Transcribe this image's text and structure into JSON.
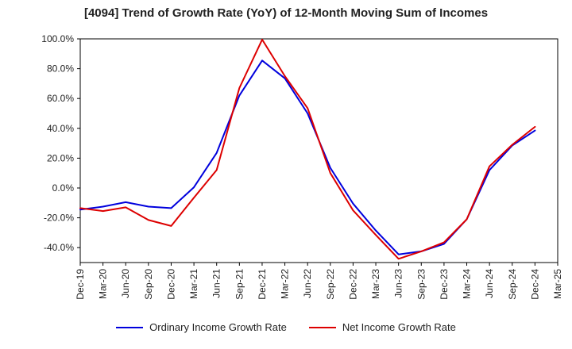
{
  "chart_data": {
    "type": "line",
    "title": "[4094]  Trend of Growth Rate (YoY) of 12-Month Moving Sum of Incomes",
    "xlabel": "",
    "ylabel": "",
    "ylim": [
      -50,
      100
    ],
    "y_ticks": [
      "100.0%",
      "80.0%",
      "60.0%",
      "40.0%",
      "20.0%",
      "0.0%",
      "-20.0%",
      "-40.0%"
    ],
    "y_tick_values": [
      100,
      80,
      60,
      40,
      20,
      0,
      -20,
      -40
    ],
    "x_ticks": [
      "Dec-19",
      "Mar-20",
      "Jun-20",
      "Sep-20",
      "Dec-20",
      "Mar-21",
      "Jun-21",
      "Sep-21",
      "Dec-21",
      "Mar-22",
      "Jun-22",
      "Sep-22",
      "Dec-22",
      "Mar-23",
      "Jun-23",
      "Sep-23",
      "Dec-23",
      "Mar-24",
      "Jun-24",
      "Sep-24",
      "Dec-24",
      "Mar-25"
    ],
    "grid": true,
    "legend_position": "bottom",
    "series": [
      {
        "name": "Ordinary Income Growth Rate",
        "color": "#0000dd",
        "values": [
          -14.5,
          -12.5,
          -9.5,
          -12.5,
          -13.5,
          0.5,
          23.5,
          62.0,
          85.5,
          73.5,
          50.0,
          13.5,
          -10.5,
          -28.5,
          -44.5,
          -42.5,
          -37.5,
          -21.0,
          12.0,
          28.5,
          38.5
        ]
      },
      {
        "name": "Net Income Growth Rate",
        "color": "#dd0000",
        "values": [
          -13.5,
          -15.5,
          -13.0,
          -21.5,
          -25.5,
          -6.5,
          12.0,
          67.0,
          99.5,
          75.0,
          53.5,
          10.0,
          -15.0,
          -31.5,
          -47.5,
          -42.5,
          -36.5,
          -21.0,
          14.5,
          29.0,
          41.0
        ]
      }
    ]
  }
}
